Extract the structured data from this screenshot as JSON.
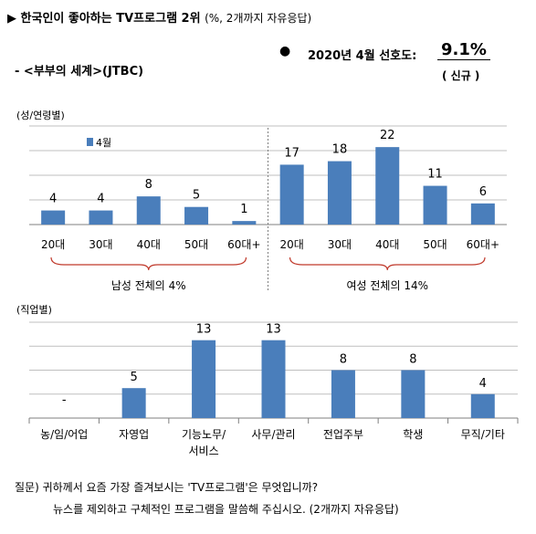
{
  "header": {
    "title": "▶ 한국인이 좋아하는 TV프로그램 2위",
    "title_sub": "(%, 2개까지 자유응답)",
    "program": "- <부부의 세계>(JTBC)",
    "bullet": "●",
    "pref_label": "2020년 4월 선호도:",
    "pref_value": "9.1%",
    "pref_new": "( 신규 )"
  },
  "colors": {
    "bar": "#4a7ebb",
    "bracket": "#c0392b",
    "grid": "#bfbfbf"
  },
  "chart_data": [
    {
      "type": "bar",
      "section_label": "(성/연령별)",
      "legend": "4월",
      "categories": [
        "20대",
        "30대",
        "40대",
        "50대",
        "60대+",
        "20대",
        "30대",
        "40대",
        "50대",
        "60대+"
      ],
      "series": [
        {
          "name": "4월",
          "values": [
            4,
            4,
            8,
            5,
            1,
            17,
            18,
            22,
            11,
            6
          ]
        }
      ],
      "value_labels": [
        "4",
        "4",
        "8",
        "5",
        "1",
        "17",
        "18",
        "22",
        "11",
        "6"
      ],
      "groups": [
        {
          "label": "남성 전체의 4%",
          "categories": [
            "20대",
            "30대",
            "40대",
            "50대",
            "60대+"
          ]
        },
        {
          "label": "여성 전체의 14%",
          "categories": [
            "20대",
            "30대",
            "40대",
            "50대",
            "60대+"
          ]
        }
      ],
      "ylim": [
        0,
        28
      ],
      "grid": true
    },
    {
      "type": "bar",
      "section_label": "(직업별)",
      "categories": [
        "농/임/어업",
        "자영업",
        "기능노무/서비스",
        "사무/관리",
        "전업주부",
        "학생",
        "무직/기타"
      ],
      "category_lines": [
        [
          "농/임/어업"
        ],
        [
          "자영업"
        ],
        [
          "기능노무/",
          "서비스"
        ],
        [
          "사무/관리"
        ],
        [
          "전업주부"
        ],
        [
          "학생"
        ],
        [
          "무직/기타"
        ]
      ],
      "values": [
        0,
        5,
        13,
        13,
        8,
        8,
        4
      ],
      "value_labels": [
        "-",
        "5",
        "13",
        "13",
        "8",
        "8",
        "4"
      ],
      "ylim": [
        0,
        16
      ],
      "grid": true
    }
  ],
  "footer": {
    "question": "질문) 귀하께서 요즘 가장 즐겨보시는 'TV프로그램'은 무엇입니까?",
    "question2": "뉴스를 제외하고 구체적인 프로그램을 말씀해 주십시오. (2개까지 자유응답)"
  }
}
